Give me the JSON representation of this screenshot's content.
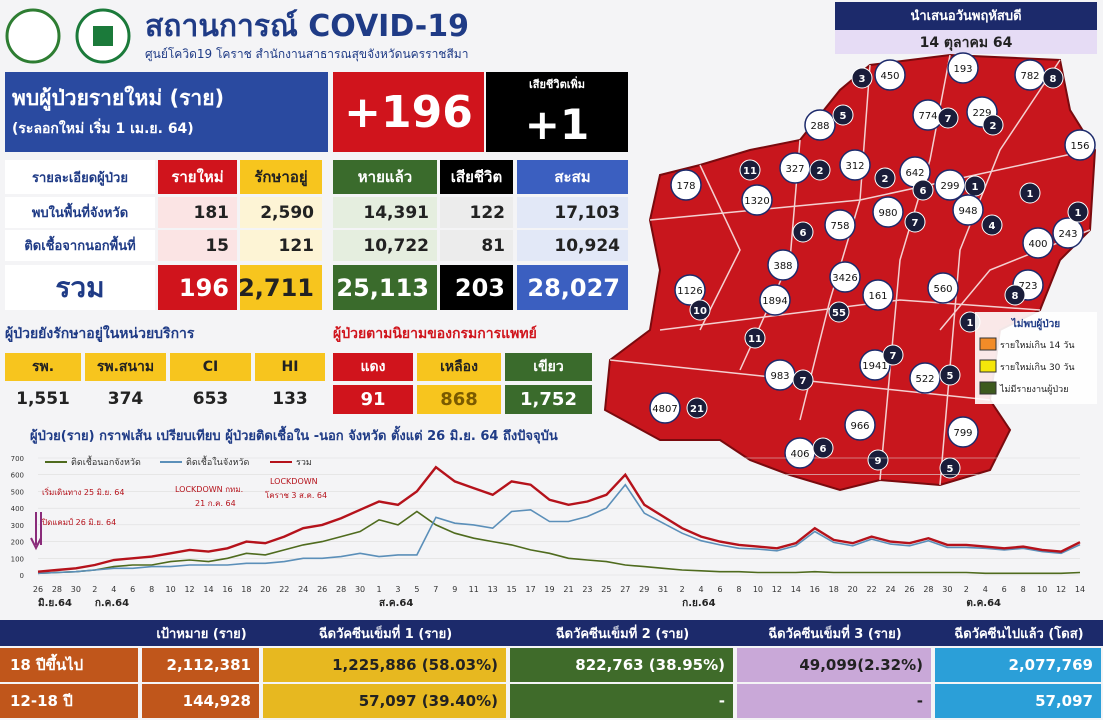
{
  "header": {
    "title": "สถานการณ์ COVID-19",
    "subtitle": "ศูนย์โควิด19 โคราช สำนักงานสาธารณสุขจังหวัดนครราชสีมา"
  },
  "date_box": {
    "label": "นำเสนอวันพฤหัสบดี",
    "date": "14 ตุลาคม 64"
  },
  "new_cases": {
    "label": "พบผู้ป่วยรายใหม่ (ราย)",
    "sublabel": "(ระลอกใหม่ เริ่ม 1 เม.ย. 64)",
    "value": "+196"
  },
  "deaths_new": {
    "label": "เสียชีวิตเพิ่ม",
    "value": "+1"
  },
  "summary": {
    "columns": [
      "รายละเอียดผู้ป่วย",
      "รายใหม่",
      "รักษาอยู่",
      "หายแล้ว",
      "เสียชีวิต",
      "สะสม"
    ],
    "rows": [
      [
        "พบในพื้นที่จังหวัด",
        "181",
        "2,590",
        "14,391",
        "122",
        "17,103"
      ],
      [
        "ติดเชื้อจากนอกพื้นที่",
        "15",
        "121",
        "10,722",
        "81",
        "10,924"
      ],
      [
        "รวม",
        "196",
        "2,711",
        "25,113",
        "203",
        "28,027"
      ]
    ]
  },
  "in_service": {
    "title": "ผู้ป่วยยังรักษาอยู่ในหน่วยบริการ",
    "columns": [
      "รพ.",
      "รพ.สนาม",
      "CI",
      "HI"
    ],
    "values": [
      "1,551",
      "374",
      "653",
      "133"
    ]
  },
  "severity": {
    "title": "ผู้ป่วยตามนิยามของกรมการแพทย์",
    "columns": [
      "แดง",
      "เหลือง",
      "เขียว"
    ],
    "values": [
      "91",
      "868",
      "1,752"
    ]
  },
  "chart_data": {
    "type": "line",
    "title": "ผู้ป่วย(ราย) กราฟเส้น เปรียบเทียบ ผู้ป่วยติดเชื้อใน -นอก จังหวัด ตั้งแต่ 26 มิ.ย. 64 ถึงปัจจุบัน",
    "categories": [
      "26",
      "28",
      "30",
      "2",
      "4",
      "6",
      "8",
      "10",
      "12",
      "14",
      "16",
      "18",
      "20",
      "22",
      "24",
      "26",
      "28",
      "30",
      "1",
      "3",
      "5",
      "7",
      "9",
      "11",
      "13",
      "15",
      "17",
      "19",
      "21",
      "23",
      "25",
      "27",
      "29",
      "31",
      "2",
      "4",
      "6",
      "8",
      "10",
      "12",
      "14",
      "16",
      "18",
      "20",
      "22",
      "24",
      "26",
      "28",
      "30",
      "2",
      "4",
      "6",
      "8",
      "10",
      "12",
      "14"
    ],
    "months": [
      "มิ.ย.64",
      "ก.ค.64",
      "ส.ค.64",
      "ก.ย.64",
      "ต.ค.64"
    ],
    "ylim": [
      0,
      700
    ],
    "yticks": [
      0,
      100,
      200,
      300,
      400,
      500,
      600,
      700
    ],
    "series": [
      {
        "name": "ติดเชื้อนอกจังหวัด",
        "color": "#4f6b1e",
        "values": [
          10,
          15,
          20,
          30,
          50,
          60,
          60,
          80,
          90,
          80,
          100,
          130,
          120,
          150,
          180,
          200,
          230,
          260,
          330,
          300,
          380,
          300,
          250,
          220,
          200,
          180,
          150,
          130,
          100,
          90,
          80,
          60,
          50,
          40,
          30,
          25,
          20,
          20,
          15,
          15,
          15,
          20,
          15,
          15,
          15,
          15,
          15,
          15,
          15,
          15,
          10,
          10,
          10,
          10,
          10,
          15
        ]
      },
      {
        "name": "ติดเชื้อในจังหวัด",
        "color": "#5b8fb9",
        "values": [
          10,
          15,
          20,
          30,
          40,
          40,
          50,
          50,
          60,
          60,
          60,
          70,
          70,
          80,
          100,
          100,
          110,
          130,
          110,
          120,
          120,
          345,
          310,
          300,
          280,
          380,
          390,
          320,
          320,
          350,
          400,
          540,
          370,
          310,
          250,
          205,
          180,
          160,
          155,
          145,
          175,
          260,
          195,
          175,
          215,
          185,
          175,
          205,
          165,
          165,
          160,
          150,
          160,
          140,
          130,
          181
        ]
      },
      {
        "name": "รวม",
        "color": "#b5121b",
        "values": [
          20,
          30,
          40,
          60,
          90,
          100,
          110,
          130,
          150,
          140,
          160,
          200,
          190,
          230,
          280,
          300,
          340,
          390,
          440,
          420,
          500,
          645,
          560,
          520,
          480,
          560,
          540,
          450,
          420,
          440,
          480,
          600,
          420,
          350,
          280,
          230,
          200,
          180,
          170,
          160,
          190,
          280,
          210,
          190,
          230,
          200,
          190,
          220,
          180,
          180,
          170,
          160,
          170,
          150,
          140,
          196
        ]
      }
    ],
    "annotations": [
      "เริ่มเดินทาง 25 มิ.ย. 64",
      "ปิดแคมป์ 26 มิ.ย. 64",
      "LOCKDOWN กทม.",
      "21 ก.ค. 64",
      "LOCKDOWN",
      "โคราช 3 ส.ค. 64"
    ]
  },
  "map": {
    "districts": [
      {
        "total": "450",
        "new": "3"
      },
      {
        "total": "193"
      },
      {
        "total": "774",
        "new": "7"
      },
      {
        "total": "229",
        "new": "2"
      },
      {
        "total": "782",
        "new": "8"
      },
      {
        "total": "156"
      },
      {
        "total": "288",
        "new": "5"
      },
      {
        "total": "327",
        "new": "2"
      },
      {
        "total": "312",
        "new": "2"
      },
      {
        "total": "642",
        "new": "6"
      },
      {
        "total": "178"
      },
      {
        "total": "1320",
        "new": "11"
      },
      {
        "total": "758",
        "new": "6"
      },
      {
        "total": "980",
        "new": "7"
      },
      {
        "total": "299",
        "new": "1"
      },
      {
        "total": "948",
        "new": "4"
      },
      {
        "total": "243",
        "new": "1"
      },
      {
        "total": "400",
        "new": "1"
      },
      {
        "total": "388"
      },
      {
        "total": "3426",
        "new": "55"
      },
      {
        "total": "161"
      },
      {
        "total": "723",
        "new": "8"
      },
      {
        "total": "1126",
        "new": "10"
      },
      {
        "total": "1894",
        "new": "11"
      },
      {
        "total": "560",
        "new": "1"
      },
      {
        "total": "1941",
        "new": "7"
      },
      {
        "total": "983",
        "new": "7"
      },
      {
        "total": "522",
        "new": "5"
      },
      {
        "total": "4807",
        "new": "21"
      },
      {
        "total": "966",
        "new": "9"
      },
      {
        "total": "406",
        "new": "6"
      },
      {
        "total": "799",
        "new": "5"
      }
    ],
    "legend_title": "ไม่พบผู้ป่วย",
    "legend": [
      {
        "label": "รายใหม่เกิน 14 วัน",
        "color": "#f28c28"
      },
      {
        "label": "รายใหม่เกิน 30 วัน",
        "color": "#f5e60a"
      },
      {
        "label": "ไม่มีรายงานผู้ป่วย",
        "color": "#3d5a1e"
      }
    ]
  },
  "vaccine": {
    "columns": [
      "เป้าหมาย (ราย)",
      "ฉีดวัคซีนเข็มที่ 1 (ราย)",
      "ฉีดวัคซีนเข็มที่ 2 (ราย)",
      "ฉีดวัคซีนเข็มที่ 3 (ราย)",
      "ฉีดวัคซีนไปแล้ว (โดส)"
    ],
    "rows": [
      [
        "18 ปีขึ้นไป",
        "2,112,381",
        "1,225,886 (58.03%)",
        "822,763 (38.95%)",
        "49,099(2.32%)",
        "2,077,769"
      ],
      [
        "12-18 ปี",
        "144,928",
        "57,097 (39.40%)",
        "-",
        "-",
        "57,097"
      ]
    ]
  }
}
